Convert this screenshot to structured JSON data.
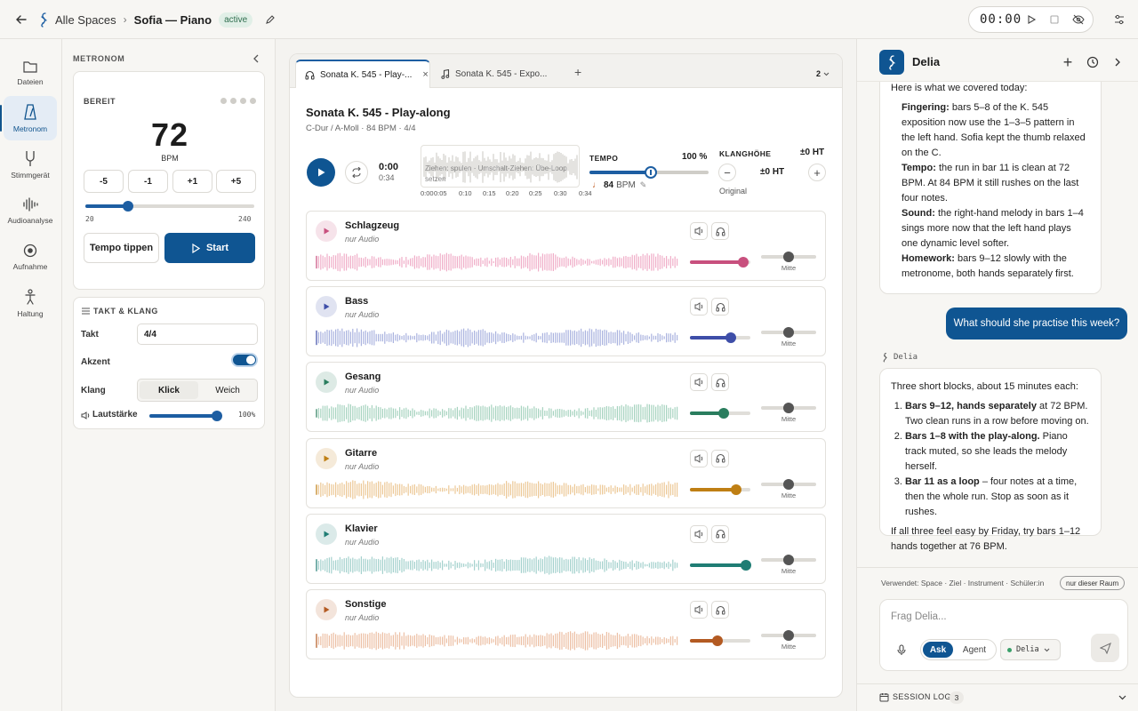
{
  "breadcrumb": {
    "home": "Alle Spaces",
    "title": "Sofia — Piano",
    "badge": "active"
  },
  "timer": {
    "time": "00:00"
  },
  "rail": [
    {
      "label": "Dateien",
      "icon": "folder-icon"
    },
    {
      "label": "Metronom",
      "icon": "metronome-icon"
    },
    {
      "label": "Stimmgerät",
      "icon": "tuning-fork-icon"
    },
    {
      "label": "Audioanalyse",
      "icon": "waveform-icon"
    },
    {
      "label": "Aufnahme",
      "icon": "record-icon"
    },
    {
      "label": "Haltung",
      "icon": "posture-icon"
    }
  ],
  "metronome": {
    "header": "METRONOM",
    "status": "BEREIT",
    "bpm": "72",
    "bpm_unit": "BPM",
    "step_buttons": [
      "-5",
      "-1",
      "+1",
      "+5"
    ],
    "range_min": "20",
    "range_max": "240",
    "tap_label": "Tempo tippen",
    "start_label": "Start"
  },
  "takt_klang": {
    "header": "TAKT & KLANG",
    "takt_label": "Takt",
    "takt_value": "4/4",
    "akzent_label": "Akzent",
    "klang_label": "Klang",
    "klang_options": [
      "Klick",
      "Weich"
    ],
    "volume_label": "Lautstärke",
    "volume_value": "100%"
  },
  "tabs": {
    "items": [
      "Sonata K. 545 - Play-...",
      "Sonata K. 545 - Expo..."
    ],
    "count": "2"
  },
  "player": {
    "title": "Sonata K. 545 - Play-along",
    "subtitle": "C-Dur / A-Moll · 84 BPM · 4/4",
    "time": "0:00",
    "duration": "0:34",
    "hint": "Ziehen: spulen · Umschalt-Ziehen: Übe-Loop setzen",
    "ticks": [
      "0:00",
      "0:05",
      "0:10",
      "0:15",
      "0:20",
      "0:25",
      "0:30",
      "0:34"
    ],
    "tempo_label": "TEMPO",
    "tempo_value": "100 %",
    "tempo_bpm": "84",
    "tempo_bpm_unit": "BPM",
    "pitch_label": "KLANGHÖHE",
    "pitch_value": "±0 HT",
    "pitch_center": "±0 HT",
    "pitch_original": "Original"
  },
  "tracks": [
    {
      "name": "Schlagzeug",
      "sub": "nur Audio",
      "color": "#c8507e",
      "wave": "#f0aec8",
      "volume": 0.88,
      "pan_label": "Mitte"
    },
    {
      "name": "Bass",
      "sub": "nur Audio",
      "color": "#3e4ea8",
      "wave": "#aab3df",
      "volume": 0.68,
      "pan_label": "Mitte"
    },
    {
      "name": "Gesang",
      "sub": "nur Audio",
      "color": "#2a7d5e",
      "wave": "#a6d3bf",
      "volume": 0.56,
      "pan_label": "Mitte"
    },
    {
      "name": "Gitarre",
      "sub": "nur Audio",
      "color": "#bf7f14",
      "wave": "#ecc896",
      "volume": 0.76,
      "pan_label": "Mitte"
    },
    {
      "name": "Klavier",
      "sub": "nur Audio",
      "color": "#1f7d74",
      "wave": "#a4d1cd",
      "volume": 0.92,
      "pan_label": "Mitte"
    },
    {
      "name": "Sonstige",
      "sub": "nur Audio",
      "color": "#b35a22",
      "wave": "#ecbfa4",
      "volume": 0.45,
      "pan_label": "Mitte"
    }
  ],
  "chat": {
    "title": "Delia",
    "intro": "Here is what we covered today:",
    "summary": [
      {
        "label": "Fingering:",
        "text": " bars 5–8 of the K. 545 exposition now use the 1–3–5 pattern in the left hand. Sofia kept the thumb relaxed on the C."
      },
      {
        "label": "Tempo:",
        "text": " the run in bar 11 is clean at 72 BPM. At 84 BPM it still rushes on the last four notes."
      },
      {
        "label": "Sound:",
        "text": " the right-hand melody in bars 1–4 sings more now that the left hand plays one dynamic level softer."
      },
      {
        "label": "Homework:",
        "text": " bars 9–12 slowly with the metronome, both hands separately first."
      }
    ],
    "user_message": "What should she practise this week?",
    "agent_name": "Delia",
    "reply_intro": "Three short blocks, about 15 minutes each:",
    "reply_items": [
      {
        "bold": "Bars 9–12, hands separately",
        "text": " at 72 BPM. Two clean runs in a row before moving on."
      },
      {
        "bold": "Bars 1–8 with the play-along.",
        "text": " Piano track muted, so she leads the melody herself."
      },
      {
        "bold": "Bar 11 as a loop",
        "text": " – four notes at a time, then the whole run. Stop as soon as it rushes."
      }
    ],
    "reply_outro": "If all three feel easy by Friday, try bars 1–12 hands together at 76 BPM.",
    "context_label": "Verwendet: Space · Ziel · Instrument · Schüler:in",
    "scope_label": "nur dieser Raum",
    "input_placeholder": "Frag Delia...",
    "mode_ask": "Ask",
    "mode_agent": "Agent",
    "agent_select": "Delia",
    "session_log": "SESSION LOG",
    "session_count": "3"
  },
  "colors": {
    "accent": "#1d5ea2",
    "primary_button": "#0f5592"
  }
}
